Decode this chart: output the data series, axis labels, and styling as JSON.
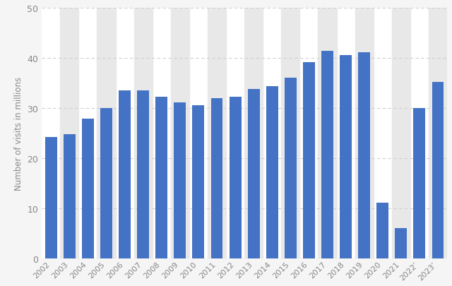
{
  "years": [
    "2002",
    "2003",
    "2004",
    "2005",
    "2006",
    "2007",
    "2008",
    "2009",
    "2010",
    "2011",
    "2012",
    "2013",
    "2014",
    "2015",
    "2016",
    "2017",
    "2018",
    "2019",
    "2020",
    "2021",
    "2022’",
    "2023’"
  ],
  "values": [
    24.2,
    24.8,
    27.8,
    30.0,
    33.5,
    33.5,
    32.2,
    31.1,
    30.5,
    32.0,
    32.2,
    33.8,
    34.4,
    36.1,
    39.2,
    41.4,
    40.5,
    41.1,
    11.1,
    6.0,
    30.0,
    35.2
  ],
  "bar_color": "#4472c4",
  "ylabel": "Number of visits in millions",
  "ylim": [
    0,
    50
  ],
  "yticks": [
    0,
    10,
    20,
    30,
    40,
    50
  ],
  "figure_bg": "#f5f5f5",
  "plot_bg": "#ffffff",
  "stripe_color": "#e8e8e8",
  "grid_color": "#d0d0d0",
  "tick_label_color": "#888888",
  "axis_label_color": "#888888"
}
